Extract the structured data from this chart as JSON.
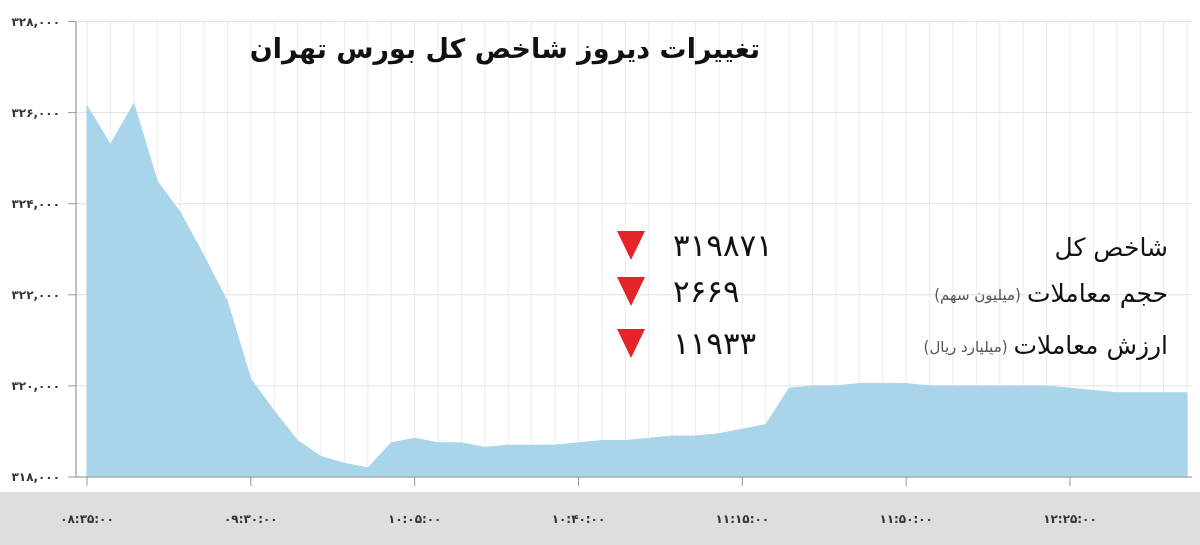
{
  "chart_data": {
    "type": "area",
    "title": "تغییرات دیروز شاخص کل بورس تهران",
    "categories": [
      "۰۸:۳۵:۰۰",
      null,
      null,
      null,
      null,
      null,
      null,
      "۰۹:۳۰:۰۰",
      null,
      null,
      null,
      null,
      null,
      null,
      "۱۰:۰۵:۰۰",
      null,
      null,
      null,
      null,
      null,
      null,
      "۱۰:۴۰:۰۰",
      null,
      null,
      null,
      null,
      null,
      null,
      "۱۱:۱۵:۰۰",
      null,
      null,
      null,
      null,
      null,
      null,
      "۱۱:۵۰:۰۰",
      null,
      null,
      null,
      null,
      null,
      null,
      "۱۲:۲۵:۰۰",
      null,
      null,
      null,
      null,
      null
    ],
    "values": [
      326150,
      325300,
      326200,
      324500,
      323800,
      322850,
      321850,
      320150,
      319450,
      318800,
      318450,
      318300,
      318200,
      318750,
      318850,
      318750,
      318750,
      318650,
      318700,
      318700,
      318700,
      318750,
      318800,
      318800,
      318850,
      318900,
      318900,
      318950,
      319050,
      319150,
      319950,
      320000,
      320000,
      320050,
      320050,
      320050,
      320000,
      320000,
      320000,
      320000,
      320000,
      320000,
      319950,
      319900,
      319850,
      319850,
      319850,
      319850
    ],
    "color": "#a8d5ea",
    "ylim": [
      318000,
      328000
    ],
    "yticks": [
      {
        "value": 318000,
        "label": "۳۱۸,۰۰۰"
      },
      {
        "value": 320000,
        "label": "۳۲۰,۰۰۰"
      },
      {
        "value": 322000,
        "label": "۳۲۲,۰۰۰"
      },
      {
        "value": 324000,
        "label": "۳۲۴,۰۰۰"
      },
      {
        "value": 326000,
        "label": "۳۲۶,۰۰۰"
      },
      {
        "value": 328000,
        "label": "۳۲۸,۰۰۰"
      }
    ],
    "grid": true,
    "annotations": [
      "شاخص کل",
      "۳۱۹۸۷۱",
      "حجم معاملات",
      "(میلیون سهم)",
      "۲۶۶۹",
      "ارزش معاملات",
      "(میلیارد ریال)",
      "۱۱۹۳۳"
    ]
  }
}
